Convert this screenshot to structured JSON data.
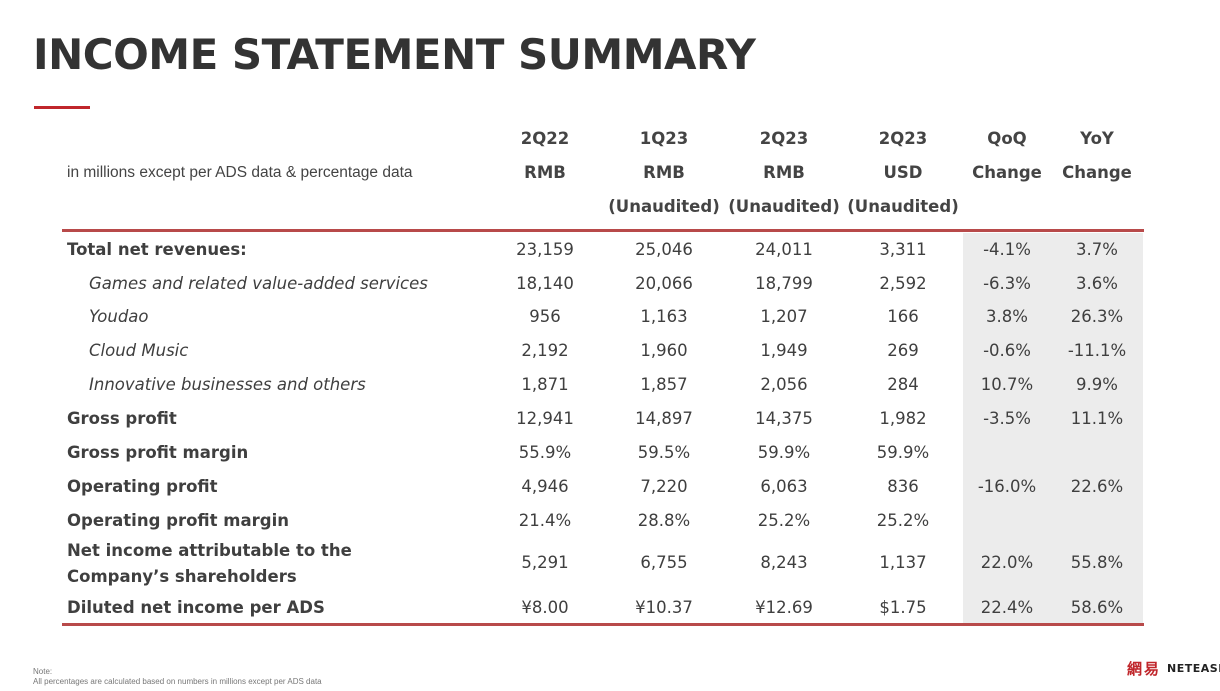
{
  "title": "INCOME STATEMENT SUMMARY",
  "accent_color": "#c0262b",
  "table_rule_color": "#b84a4a",
  "shade_color": "#ececec",
  "header_note": "in millions except per ADS data & percentage data",
  "columns": [
    {
      "l1": "2Q22",
      "l2": "RMB",
      "l3": ""
    },
    {
      "l1": "1Q23",
      "l2": "RMB",
      "l3": "(Unaudited)"
    },
    {
      "l1": "2Q23",
      "l2": "RMB",
      "l3": "(Unaudited)"
    },
    {
      "l1": "2Q23",
      "l2": "USD",
      "l3": "(Unaudited)"
    },
    {
      "l1": "QoQ",
      "l2": "Change",
      "l3": ""
    },
    {
      "l1": "YoY",
      "l2": "Change",
      "l3": ""
    }
  ],
  "rows": [
    {
      "label": "Total net revenues:",
      "style": "bold",
      "values": [
        "23,159",
        "25,046",
        "24,011",
        "3,311",
        "-4.1%",
        "3.7%"
      ]
    },
    {
      "label": "Games and related value-added services",
      "style": "sub",
      "values": [
        "18,140",
        "20,066",
        "18,799",
        "2,592",
        "-6.3%",
        "3.6%"
      ]
    },
    {
      "label": "Youdao",
      "style": "sub",
      "values": [
        "956",
        "1,163",
        "1,207",
        "166",
        "3.8%",
        "26.3%"
      ]
    },
    {
      "label": "Cloud Music",
      "style": "sub",
      "values": [
        "2,192",
        "1,960",
        "1,949",
        "269",
        "-0.6%",
        "-11.1%"
      ]
    },
    {
      "label": "Innovative businesses and others",
      "style": "sub",
      "values": [
        "1,871",
        "1,857",
        "2,056",
        "284",
        "10.7%",
        "9.9%"
      ]
    },
    {
      "label": "Gross profit",
      "style": "bold",
      "values": [
        "12,941",
        "14,897",
        "14,375",
        "1,982",
        "-3.5%",
        "11.1%"
      ]
    },
    {
      "label": "Gross profit margin",
      "style": "bold",
      "values": [
        "55.9%",
        "59.5%",
        "59.9%",
        "59.9%",
        "",
        ""
      ]
    },
    {
      "label": "Operating profit",
      "style": "bold",
      "values": [
        "4,946",
        "7,220",
        "6,063",
        "836",
        "-16.0%",
        "22.6%"
      ]
    },
    {
      "label": "Operating profit margin",
      "style": "bold",
      "values": [
        "21.4%",
        "28.8%",
        "25.2%",
        "25.2%",
        "",
        ""
      ]
    },
    {
      "label": "Net income attributable to the Company’s shareholders",
      "style": "bold",
      "values": [
        "5,291",
        "6,755",
        "8,243",
        "1,137",
        "22.0%",
        "55.8%"
      ]
    },
    {
      "label": "Diluted net income per ADS",
      "style": "bold",
      "values": [
        "¥8.00",
        "¥10.37",
        "¥12.69",
        "$1.75",
        "22.4%",
        "58.6%"
      ]
    }
  ],
  "footnote": {
    "heading": "Note:",
    "text": "All percentages are calculated based on numbers in millions except per ADS data"
  },
  "logo": {
    "cn": "網易",
    "en": "NETEASE"
  }
}
